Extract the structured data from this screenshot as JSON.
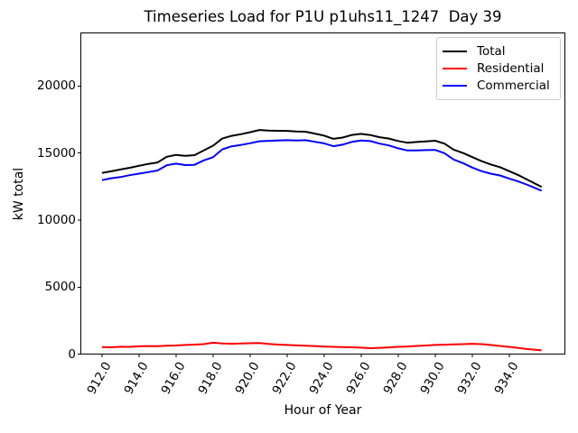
{
  "figure": {
    "background": "#ffffff"
  },
  "title": "Timeseries Load for P1U p1uhs11_1247  Day 39",
  "axes": {
    "xlabel": "Hour of Year",
    "ylabel": "kW total"
  },
  "legend": {
    "position": "upper right",
    "items": [
      {
        "label": "Total",
        "color": "#000000"
      },
      {
        "label": "Residential",
        "color": "#ff0000"
      },
      {
        "label": "Commercial",
        "color": "#0000ff"
      }
    ]
  },
  "chart_data": {
    "type": "line",
    "title": "Timeseries Load for P1U p1uhs11_1247  Day 39",
    "xlabel": "Hour of Year",
    "ylabel": "kW total",
    "grid": false,
    "legend_position": "upper right",
    "xlim": [
      910.85,
      937.0
    ],
    "ylim": [
      0,
      23940
    ],
    "xtick_values": [
      912,
      914,
      916,
      918,
      920,
      922,
      924,
      926,
      928,
      930,
      932,
      934
    ],
    "xtick_labels": [
      "912.0",
      "914.0",
      "916.0",
      "918.0",
      "920.0",
      "922.0",
      "924.0",
      "926.0",
      "928.0",
      "930.0",
      "932.0",
      "934.0"
    ],
    "ytick_values": [
      0,
      5000,
      10000,
      15000,
      20000
    ],
    "ytick_labels": [
      "0",
      "5000",
      "10000",
      "15000",
      "20000"
    ],
    "x": [
      912.0,
      912.5,
      913.0,
      913.5,
      914.0,
      914.5,
      915.0,
      915.5,
      916.0,
      916.5,
      917.0,
      917.5,
      918.0,
      918.5,
      919.0,
      919.5,
      920.0,
      920.5,
      921.0,
      921.5,
      922.0,
      922.5,
      923.0,
      923.5,
      924.0,
      924.5,
      925.0,
      925.5,
      926.0,
      926.5,
      927.0,
      927.5,
      928.0,
      928.5,
      929.0,
      929.5,
      930.0,
      930.5,
      931.0,
      931.5,
      932.0,
      932.5,
      933.0,
      933.5,
      934.0,
      934.5,
      935.0,
      935.5,
      935.75
    ],
    "series": [
      {
        "name": "Total",
        "color": "#000000",
        "values": [
          13520,
          13640,
          13770,
          13900,
          14050,
          14190,
          14300,
          14720,
          14860,
          14790,
          14840,
          15200,
          15550,
          16080,
          16280,
          16400,
          16550,
          16720,
          16680,
          16660,
          16650,
          16600,
          16590,
          16450,
          16300,
          16060,
          16150,
          16350,
          16430,
          16340,
          16180,
          16080,
          15900,
          15770,
          15820,
          15870,
          15920,
          15700,
          15250,
          15000,
          14700,
          14400,
          14150,
          13950,
          13650,
          13350,
          13000,
          12650,
          12480
        ]
      },
      {
        "name": "Residential",
        "color": "#ff0000",
        "values": [
          540,
          520,
          560,
          550,
          590,
          610,
          600,
          630,
          650,
          690,
          720,
          750,
          860,
          810,
          780,
          800,
          820,
          840,
          770,
          720,
          690,
          660,
          630,
          610,
          580,
          550,
          530,
          520,
          490,
          450,
          480,
          510,
          550,
          580,
          620,
          650,
          690,
          710,
          730,
          750,
          780,
          750,
          690,
          620,
          550,
          470,
          380,
          320,
          290
        ]
      },
      {
        "name": "Commercial",
        "color": "#0000ff",
        "values": [
          12980,
          13120,
          13210,
          13350,
          13460,
          13580,
          13700,
          14090,
          14210,
          14100,
          14120,
          14450,
          14690,
          15270,
          15500,
          15600,
          15730,
          15880,
          15910,
          15940,
          15960,
          15940,
          15960,
          15840,
          15720,
          15510,
          15620,
          15830,
          15940,
          15890,
          15700,
          15570,
          15350,
          15190,
          15200,
          15220,
          15230,
          14990,
          14520,
          14250,
          13920,
          13650,
          13460,
          13330,
          13100,
          12880,
          12620,
          12330,
          12190
        ]
      }
    ]
  }
}
